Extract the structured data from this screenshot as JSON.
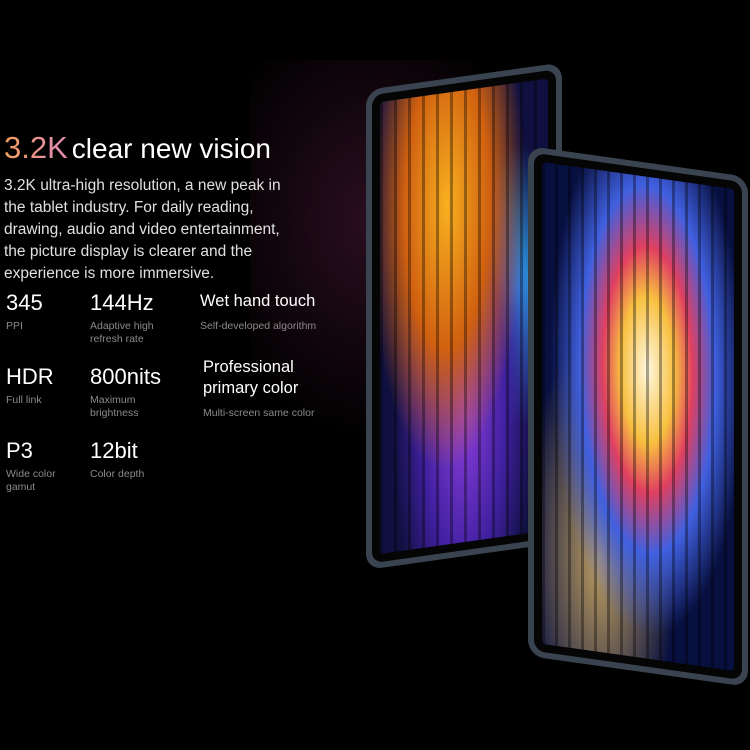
{
  "headline": {
    "accent": "3.2K",
    "rest": "clear new vision"
  },
  "description": "3.2K ultra-high resolution, a new peak in the tablet industry. For daily reading, drawing, audio and video entertainment, the picture display is clearer and the experience is more immersive.",
  "specs": [
    {
      "value": "345",
      "label": "PPI"
    },
    {
      "value": "144Hz",
      "label": "Adaptive high refresh rate"
    },
    {
      "value": "Wet hand touch",
      "label": "Self-developed algorithm"
    },
    {
      "value": "HDR",
      "label": "Full link"
    },
    {
      "value": "800nits",
      "label": "Maximum brightness"
    },
    {
      "value": "Professional primary color",
      "label": "Multi-screen same color"
    },
    {
      "value": "P3",
      "label": "Wide color gamut"
    },
    {
      "value": "12bit",
      "label": "Color depth"
    }
  ]
}
